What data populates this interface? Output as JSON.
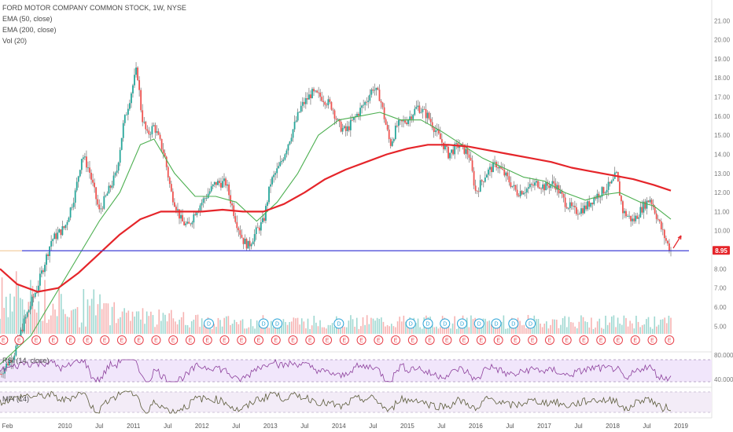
{
  "header": {
    "title": "FORD MOTOR COMPANY COMMON STOCK, 1W, NYSE",
    "indicators": [
      "EMA (50, close)",
      "EMA (200, close)",
      "Vol (20)"
    ]
  },
  "rsi_label": "RSI (14, close)",
  "mfi_label": "MFI (14)",
  "price_tag": "8.95",
  "colors": {
    "up": "#26a69a",
    "down": "#ef5350",
    "ema50": "#4caf50",
    "ema200": "#e5252a",
    "support": "#3f3fd6",
    "rsi": "#8c3f9c",
    "mfi": "#5b5b3a",
    "rsi_band": "#f1e6fb",
    "earnings_badge": "#e8414a",
    "dividend_badge": "#26a2d6"
  },
  "chart_data": {
    "type": "line",
    "y_axis_ticks": [
      "21.00",
      "20.00",
      "19.00",
      "18.00",
      "17.00",
      "16.00",
      "15.00",
      "14.00",
      "13.00",
      "12.00",
      "11.00",
      "10.00",
      "9.00",
      "8.00",
      "7.00",
      "6.00",
      "5.00"
    ],
    "rsi_ticks": [
      "80.0000",
      "40.0000"
    ],
    "x_axis_labels": [
      "Feb",
      "2010",
      "Jul",
      "2011",
      "Jul",
      "2012",
      "Jul",
      "2013",
      "Jul",
      "2014",
      "Jul",
      "2015",
      "Jul",
      "2016",
      "Jul",
      "2017",
      "Jul",
      "2018",
      "Jul",
      "2019"
    ],
    "ylim": [
      4.6,
      21.3
    ],
    "price_path": [
      {
        "x": 2009.05,
        "y": 2.5
      },
      {
        "x": 2009.25,
        "y": 3.5
      },
      {
        "x": 2009.4,
        "y": 5.2
      },
      {
        "x": 2009.6,
        "y": 7.1
      },
      {
        "x": 2009.8,
        "y": 9.5
      },
      {
        "x": 2010.0,
        "y": 10.2
      },
      {
        "x": 2010.15,
        "y": 12.0
      },
      {
        "x": 2010.25,
        "y": 14.0
      },
      {
        "x": 2010.35,
        "y": 13.2
      },
      {
        "x": 2010.5,
        "y": 11.0
      },
      {
        "x": 2010.6,
        "y": 11.8
      },
      {
        "x": 2010.75,
        "y": 13.0
      },
      {
        "x": 2010.85,
        "y": 15.5
      },
      {
        "x": 2010.95,
        "y": 17.0
      },
      {
        "x": 2011.05,
        "y": 18.5
      },
      {
        "x": 2011.12,
        "y": 16.0
      },
      {
        "x": 2011.2,
        "y": 15.0
      },
      {
        "x": 2011.3,
        "y": 15.5
      },
      {
        "x": 2011.45,
        "y": 14.0
      },
      {
        "x": 2011.55,
        "y": 12.0
      },
      {
        "x": 2011.7,
        "y": 10.5
      },
      {
        "x": 2011.8,
        "y": 10.2
      },
      {
        "x": 2011.9,
        "y": 11.0
      },
      {
        "x": 2012.0,
        "y": 11.5
      },
      {
        "x": 2012.2,
        "y": 12.5
      },
      {
        "x": 2012.35,
        "y": 12.5
      },
      {
        "x": 2012.5,
        "y": 10.5
      },
      {
        "x": 2012.6,
        "y": 9.5
      },
      {
        "x": 2012.68,
        "y": 9.2
      },
      {
        "x": 2012.8,
        "y": 10.0
      },
      {
        "x": 2012.9,
        "y": 10.5
      },
      {
        "x": 2013.0,
        "y": 12.5
      },
      {
        "x": 2013.15,
        "y": 13.5
      },
      {
        "x": 2013.3,
        "y": 15.0
      },
      {
        "x": 2013.45,
        "y": 16.5
      },
      {
        "x": 2013.6,
        "y": 17.2
      },
      {
        "x": 2013.75,
        "y": 17.0
      },
      {
        "x": 2013.9,
        "y": 16.5
      },
      {
        "x": 2014.0,
        "y": 15.5
      },
      {
        "x": 2014.1,
        "y": 15.2
      },
      {
        "x": 2014.25,
        "y": 16.0
      },
      {
        "x": 2014.4,
        "y": 16.8
      },
      {
        "x": 2014.5,
        "y": 17.5
      },
      {
        "x": 2014.6,
        "y": 17.0
      },
      {
        "x": 2014.75,
        "y": 14.5
      },
      {
        "x": 2014.85,
        "y": 15.5
      },
      {
        "x": 2015.0,
        "y": 15.8
      },
      {
        "x": 2015.15,
        "y": 16.5
      },
      {
        "x": 2015.3,
        "y": 16.0
      },
      {
        "x": 2015.45,
        "y": 15.0
      },
      {
        "x": 2015.6,
        "y": 14.0
      },
      {
        "x": 2015.75,
        "y": 14.5
      },
      {
        "x": 2015.9,
        "y": 14.0
      },
      {
        "x": 2016.0,
        "y": 12.0
      },
      {
        "x": 2016.15,
        "y": 13.0
      },
      {
        "x": 2016.3,
        "y": 13.5
      },
      {
        "x": 2016.45,
        "y": 12.8
      },
      {
        "x": 2016.6,
        "y": 12.0
      },
      {
        "x": 2016.75,
        "y": 12.2
      },
      {
        "x": 2016.9,
        "y": 12.5
      },
      {
        "x": 2017.0,
        "y": 12.3
      },
      {
        "x": 2017.15,
        "y": 12.5
      },
      {
        "x": 2017.3,
        "y": 11.5
      },
      {
        "x": 2017.45,
        "y": 11.0
      },
      {
        "x": 2017.6,
        "y": 11.2
      },
      {
        "x": 2017.75,
        "y": 11.8
      },
      {
        "x": 2017.9,
        "y": 12.2
      },
      {
        "x": 2018.0,
        "y": 12.5
      },
      {
        "x": 2018.05,
        "y": 13.0
      },
      {
        "x": 2018.15,
        "y": 11.0
      },
      {
        "x": 2018.3,
        "y": 10.5
      },
      {
        "x": 2018.45,
        "y": 11.3
      },
      {
        "x": 2018.55,
        "y": 11.7
      },
      {
        "x": 2018.62,
        "y": 11.0
      },
      {
        "x": 2018.72,
        "y": 10.0
      },
      {
        "x": 2018.8,
        "y": 9.3
      },
      {
        "x": 2018.85,
        "y": 8.95
      }
    ],
    "series": [
      {
        "name": "EMA (50, close)",
        "values": [
          {
            "x": 2009.05,
            "y": 3.0
          },
          {
            "x": 2009.5,
            "y": 4.5
          },
          {
            "x": 2010.0,
            "y": 7.5
          },
          {
            "x": 2010.5,
            "y": 10.5
          },
          {
            "x": 2010.8,
            "y": 12.0
          },
          {
            "x": 2011.1,
            "y": 14.5
          },
          {
            "x": 2011.3,
            "y": 14.8
          },
          {
            "x": 2011.6,
            "y": 13.0
          },
          {
            "x": 2011.9,
            "y": 11.8
          },
          {
            "x": 2012.2,
            "y": 11.8
          },
          {
            "x": 2012.5,
            "y": 11.5
          },
          {
            "x": 2012.8,
            "y": 10.5
          },
          {
            "x": 2013.1,
            "y": 11.5
          },
          {
            "x": 2013.4,
            "y": 13.0
          },
          {
            "x": 2013.7,
            "y": 15.0
          },
          {
            "x": 2014.0,
            "y": 15.8
          },
          {
            "x": 2014.3,
            "y": 16.0
          },
          {
            "x": 2014.6,
            "y": 16.2
          },
          {
            "x": 2014.9,
            "y": 15.8
          },
          {
            "x": 2015.2,
            "y": 15.8
          },
          {
            "x": 2015.5,
            "y": 15.2
          },
          {
            "x": 2015.8,
            "y": 14.5
          },
          {
            "x": 2016.1,
            "y": 13.8
          },
          {
            "x": 2016.4,
            "y": 13.3
          },
          {
            "x": 2016.7,
            "y": 12.8
          },
          {
            "x": 2017.0,
            "y": 12.6
          },
          {
            "x": 2017.3,
            "y": 12.0
          },
          {
            "x": 2017.6,
            "y": 11.6
          },
          {
            "x": 2017.9,
            "y": 11.9
          },
          {
            "x": 2018.1,
            "y": 12.0
          },
          {
            "x": 2018.4,
            "y": 11.5
          },
          {
            "x": 2018.6,
            "y": 11.3
          },
          {
            "x": 2018.85,
            "y": 10.6
          }
        ]
      },
      {
        "name": "EMA (200, close)",
        "values": [
          {
            "x": 2009.05,
            "y": 8.0
          },
          {
            "x": 2009.3,
            "y": 7.2
          },
          {
            "x": 2009.6,
            "y": 6.8
          },
          {
            "x": 2009.9,
            "y": 7.0
          },
          {
            "x": 2010.2,
            "y": 7.8
          },
          {
            "x": 2010.5,
            "y": 8.8
          },
          {
            "x": 2010.8,
            "y": 9.8
          },
          {
            "x": 2011.1,
            "y": 10.6
          },
          {
            "x": 2011.4,
            "y": 11.0
          },
          {
            "x": 2011.7,
            "y": 11.0
          },
          {
            "x": 2012.0,
            "y": 11.0
          },
          {
            "x": 2012.3,
            "y": 11.1
          },
          {
            "x": 2012.6,
            "y": 11.0
          },
          {
            "x": 2012.9,
            "y": 11.0
          },
          {
            "x": 2013.2,
            "y": 11.4
          },
          {
            "x": 2013.5,
            "y": 12.0
          },
          {
            "x": 2013.8,
            "y": 12.7
          },
          {
            "x": 2014.1,
            "y": 13.2
          },
          {
            "x": 2014.4,
            "y": 13.6
          },
          {
            "x": 2014.7,
            "y": 14.0
          },
          {
            "x": 2015.0,
            "y": 14.3
          },
          {
            "x": 2015.3,
            "y": 14.5
          },
          {
            "x": 2015.6,
            "y": 14.5
          },
          {
            "x": 2015.9,
            "y": 14.4
          },
          {
            "x": 2016.2,
            "y": 14.2
          },
          {
            "x": 2016.5,
            "y": 14.0
          },
          {
            "x": 2016.8,
            "y": 13.8
          },
          {
            "x": 2017.1,
            "y": 13.6
          },
          {
            "x": 2017.4,
            "y": 13.3
          },
          {
            "x": 2017.7,
            "y": 13.1
          },
          {
            "x": 2018.0,
            "y": 12.9
          },
          {
            "x": 2018.3,
            "y": 12.7
          },
          {
            "x": 2018.6,
            "y": 12.4
          },
          {
            "x": 2018.85,
            "y": 12.1
          }
        ]
      }
    ],
    "support_level": 8.95,
    "grid": false,
    "earnings_events": [
      2009.1,
      2009.33,
      2009.58,
      2009.83,
      2010.08,
      2010.33,
      2010.58,
      2010.83,
      2011.08,
      2011.33,
      2011.58,
      2011.83,
      2012.08,
      2012.33,
      2012.58,
      2012.83,
      2013.08,
      2013.33,
      2013.58,
      2013.83,
      2014.08,
      2014.33,
      2014.58,
      2014.83,
      2015.08,
      2015.33,
      2015.58,
      2015.83,
      2016.08,
      2016.33,
      2016.58,
      2016.83,
      2017.08,
      2017.33,
      2017.58,
      2017.83,
      2018.08,
      2018.33,
      2018.58,
      2018.83
    ],
    "dividend_events": [
      2012.1,
      2012.9,
      2013.1,
      2014.0,
      2015.05,
      2015.3,
      2015.55,
      2015.8,
      2016.05,
      2016.3,
      2016.55,
      2016.8
    ]
  }
}
